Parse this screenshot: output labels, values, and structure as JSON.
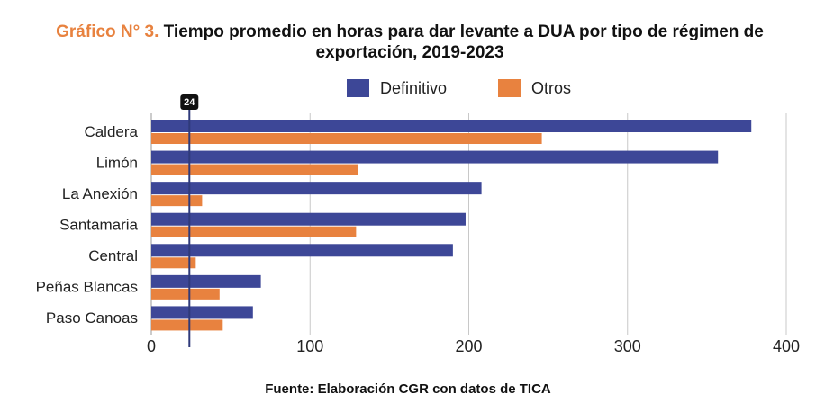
{
  "chart_data": {
    "type": "bar",
    "orientation": "horizontal",
    "title_prefix": "Gráfico N° 3.",
    "title": "Tiempo promedio en horas para dar levante a DUA por tipo de régimen de exportación, 2019-2023",
    "categories": [
      "Caldera",
      "Limón",
      "La Anexión",
      "Santamaria",
      "Central",
      "Peñas Blancas",
      "Paso Canoas"
    ],
    "series": [
      {
        "name": "Definitivo",
        "color": "#3d4797",
        "values": [
          378,
          357,
          208,
          198,
          190,
          69,
          64
        ]
      },
      {
        "name": "Otros",
        "color": "#e8823f",
        "values": [
          246,
          130,
          32,
          129,
          28,
          43,
          45
        ]
      }
    ],
    "xlim": [
      0,
      400
    ],
    "xticks": [
      0,
      100,
      200,
      300,
      400
    ],
    "grid": true,
    "reference_line": {
      "value": 24,
      "label": "24"
    },
    "source": "Fuente: Elaboración CGR con datos de TICA"
  }
}
